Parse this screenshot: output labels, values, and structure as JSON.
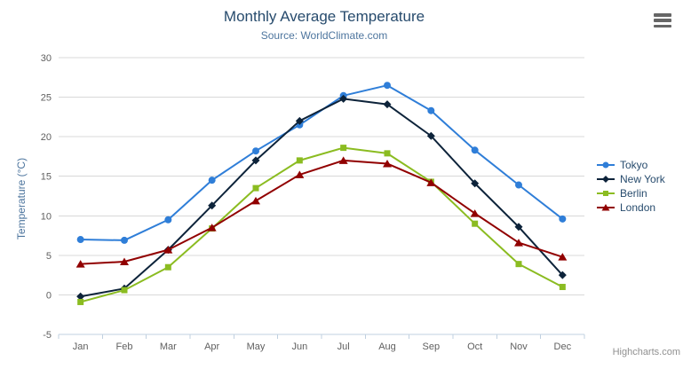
{
  "chart_data": {
    "type": "line",
    "title": "Monthly Average Temperature",
    "subtitle": "Source: WorldClimate.com",
    "ylabel": "Temperature (°C)",
    "xlabel": "",
    "ylim": [
      -5,
      30
    ],
    "ytick_step": 5,
    "grid": true,
    "legend_position": "right",
    "categories": [
      "Jan",
      "Feb",
      "Mar",
      "Apr",
      "May",
      "Jun",
      "Jul",
      "Aug",
      "Sep",
      "Oct",
      "Nov",
      "Dec"
    ],
    "series": [
      {
        "name": "Tokyo",
        "marker": "circle",
        "color": "#2f7ed8",
        "values": [
          7.0,
          6.9,
          9.5,
          14.5,
          18.2,
          21.5,
          25.2,
          26.5,
          23.3,
          18.3,
          13.9,
          9.6
        ]
      },
      {
        "name": "New York",
        "marker": "diamond",
        "color": "#0d233a",
        "values": [
          -0.2,
          0.8,
          5.7,
          11.3,
          17.0,
          22.0,
          24.8,
          24.1,
          20.1,
          14.1,
          8.6,
          2.5
        ]
      },
      {
        "name": "Berlin",
        "marker": "square",
        "color": "#8bbc21",
        "values": [
          -0.9,
          0.6,
          3.5,
          8.4,
          13.5,
          17.0,
          18.6,
          17.9,
          14.3,
          9.0,
          3.9,
          1.0
        ]
      },
      {
        "name": "London",
        "marker": "triangle",
        "color": "#910000",
        "values": [
          3.9,
          4.2,
          5.7,
          8.5,
          11.9,
          15.2,
          17.0,
          16.6,
          14.2,
          10.3,
          6.6,
          4.8
        ]
      }
    ],
    "colors": {
      "grid": "#d8d8d8",
      "axis_line": "#c0d0e0",
      "axis_labels": "#606060",
      "title": "#274b6d",
      "subtitle": "#4d759e",
      "axis_title": "#4d759e",
      "legend_text": "#274b6d"
    }
  },
  "export_menu": {
    "icon": "hamburger-icon"
  },
  "credit": {
    "label": "Highcharts.com"
  }
}
